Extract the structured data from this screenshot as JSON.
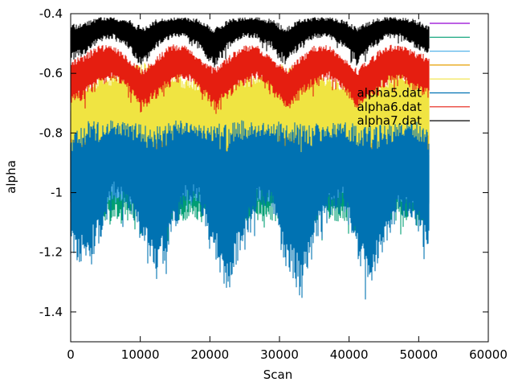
{
  "chart_data": {
    "type": "line",
    "xlabel": "Scan",
    "ylabel": "alpha",
    "xlim": [
      0,
      60000
    ],
    "ylim": [
      -1.5,
      -0.4
    ],
    "xticks": [
      0,
      10000,
      20000,
      30000,
      40000,
      50000,
      60000
    ],
    "yticks": [
      -1.4,
      -1.2,
      -1,
      -0.8,
      -0.6,
      -0.4
    ],
    "xtick_labels": [
      "0",
      "10000",
      "20000",
      "30000",
      "40000",
      "50000",
      "60000"
    ],
    "ytick_labels": [
      "-1.4",
      "-1.2",
      "-1",
      "-0.8",
      "-0.6",
      "-0.4"
    ],
    "grid": false,
    "legend_position": "top-right",
    "x_max": 51500,
    "series": [
      {
        "name": "",
        "color": "#9400d3",
        "upper": [
          -0.8,
          -0.8,
          -0.79,
          -0.8,
          -0.79,
          -0.8
        ],
        "lower": [
          -0.82,
          -0.82,
          -0.82,
          -0.82,
          -0.82,
          -0.82
        ]
      },
      {
        "name": "",
        "color": "#009e73",
        "upper": [
          -0.86,
          -0.86,
          -0.86,
          -0.86,
          -0.86,
          -0.86
        ],
        "lower": [
          -1.05,
          -1.05,
          -1.05,
          -1.05,
          -1.05,
          -1.05
        ]
      },
      {
        "name": "",
        "color": "#56b4e9",
        "upper": [
          -0.86,
          -0.86,
          -0.86,
          -0.86,
          -0.86,
          -0.86
        ],
        "lower": [
          -1.0,
          -1.0,
          -1.0,
          -1.0,
          -1.0,
          -1.0
        ]
      },
      {
        "name": "",
        "color": "#e69f00",
        "upper": [
          -0.74,
          -0.7,
          -0.76,
          -0.7,
          -0.75,
          -0.7
        ],
        "lower": [
          -0.86,
          -0.86,
          -0.88,
          -0.86,
          -0.88,
          -0.86
        ]
      },
      {
        "name": "",
        "color": "#f0e442",
        "upper": [
          -0.66,
          -0.6,
          -0.66,
          -0.6,
          -0.66,
          -0.6
        ],
        "lower": [
          -0.84,
          -0.82,
          -0.86,
          -0.82,
          -0.86,
          -0.82
        ]
      },
      {
        "name": "alpha5.dat",
        "color": "#0072b2",
        "upper": [
          -0.84,
          -0.82,
          -0.81,
          -0.79,
          -0.8,
          -0.82,
          -0.84,
          -0.81,
          -0.79,
          -0.8,
          -0.82,
          -0.84,
          -0.81,
          -0.8,
          -0.8,
          -0.82,
          -0.84,
          -0.82,
          -0.8,
          -0.8,
          -0.82,
          -0.84,
          -0.82,
          -0.8,
          -0.8,
          -0.84
        ],
        "lower": [
          -1.15,
          -1.18,
          -1.1,
          -0.98,
          -1.0,
          -1.12,
          -1.22,
          -1.1,
          -0.98,
          -1.0,
          -1.15,
          -1.24,
          -1.12,
          -1.0,
          -1.0,
          -1.18,
          -1.25,
          -1.12,
          -1.02,
          -1.0,
          -1.15,
          -1.22,
          -1.1,
          -1.02,
          -1.05,
          -1.12
        ]
      },
      {
        "name": "alpha6.dat",
        "color": "#e51e10",
        "upper": [
          -0.58,
          -0.55,
          -0.52,
          -0.52,
          -0.56,
          -0.6,
          -0.56,
          -0.52,
          -0.52,
          -0.56,
          -0.6,
          -0.56,
          -0.52,
          -0.52,
          -0.56,
          -0.6,
          -0.56,
          -0.52,
          -0.52,
          -0.56,
          -0.6,
          -0.56,
          -0.52,
          -0.52,
          -0.54,
          -0.56
        ],
        "lower": [
          -0.68,
          -0.66,
          -0.62,
          -0.6,
          -0.64,
          -0.7,
          -0.66,
          -0.62,
          -0.6,
          -0.64,
          -0.7,
          -0.66,
          -0.62,
          -0.6,
          -0.64,
          -0.7,
          -0.66,
          -0.62,
          -0.6,
          -0.64,
          -0.7,
          -0.66,
          -0.62,
          -0.6,
          -0.64,
          -0.66
        ]
      },
      {
        "name": "alpha7.dat",
        "color": "#000000",
        "upper": [
          -0.45,
          -0.44,
          -0.42,
          -0.42,
          -0.43,
          -0.46,
          -0.43,
          -0.42,
          -0.42,
          -0.43,
          -0.46,
          -0.43,
          -0.42,
          -0.42,
          -0.43,
          -0.46,
          -0.43,
          -0.42,
          -0.42,
          -0.43,
          -0.46,
          -0.43,
          -0.42,
          -0.42,
          -0.43,
          -0.45
        ],
        "lower": [
          -0.54,
          -0.52,
          -0.48,
          -0.47,
          -0.5,
          -0.56,
          -0.5,
          -0.47,
          -0.47,
          -0.5,
          -0.56,
          -0.5,
          -0.47,
          -0.47,
          -0.5,
          -0.55,
          -0.5,
          -0.47,
          -0.47,
          -0.5,
          -0.55,
          -0.5,
          -0.47,
          -0.47,
          -0.5,
          -0.52
        ]
      }
    ],
    "legend_entries": [
      "",
      "",
      "",
      "",
      "",
      "alpha5.dat",
      "alpha6.dat",
      "alpha7.dat"
    ],
    "legend_colors": [
      "#9400d3",
      "#009e73",
      "#56b4e9",
      "#e69f00",
      "#f0e442",
      "#0072b2",
      "#e51e10",
      "#000000"
    ]
  }
}
